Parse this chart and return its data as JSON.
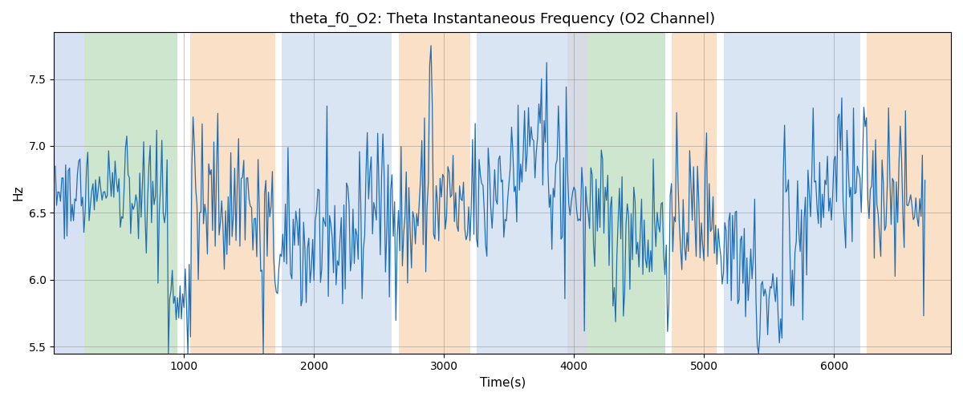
{
  "title": "theta_f0_O2: Theta Instantaneous Frequency (O2 Channel)",
  "xlabel": "Time(s)",
  "ylabel": "Hz",
  "ylim": [
    5.45,
    7.85
  ],
  "xlim": [
    0,
    6900
  ],
  "grid": true,
  "line_color": "#1f6eb5",
  "line_width": 0.9,
  "background_color": "#ffffff",
  "bands": [
    {
      "start": 0,
      "end": 230,
      "color": "#aec6e8",
      "alpha": 0.5
    },
    {
      "start": 230,
      "end": 950,
      "color": "#90c990",
      "alpha": 0.45
    },
    {
      "start": 950,
      "end": 1050,
      "color": "#ffffff",
      "alpha": 0.0
    },
    {
      "start": 1050,
      "end": 1700,
      "color": "#f5c89a",
      "alpha": 0.55
    },
    {
      "start": 1700,
      "end": 1750,
      "color": "#ffffff",
      "alpha": 0.0
    },
    {
      "start": 1750,
      "end": 2600,
      "color": "#aec6e8",
      "alpha": 0.45
    },
    {
      "start": 2600,
      "end": 2650,
      "color": "#ffffff",
      "alpha": 0.0
    },
    {
      "start": 2650,
      "end": 3200,
      "color": "#f5c89a",
      "alpha": 0.55
    },
    {
      "start": 3200,
      "end": 3250,
      "color": "#ffffff",
      "alpha": 0.0
    },
    {
      "start": 3250,
      "end": 3950,
      "color": "#aec6e8",
      "alpha": 0.45
    },
    {
      "start": 3950,
      "end": 4100,
      "color": "#b0b8c8",
      "alpha": 0.5
    },
    {
      "start": 4100,
      "end": 4700,
      "color": "#90c990",
      "alpha": 0.45
    },
    {
      "start": 4700,
      "end": 4750,
      "color": "#ffffff",
      "alpha": 0.0
    },
    {
      "start": 4750,
      "end": 5100,
      "color": "#f5c89a",
      "alpha": 0.55
    },
    {
      "start": 5100,
      "end": 5150,
      "color": "#ffffff",
      "alpha": 0.0
    },
    {
      "start": 5150,
      "end": 6200,
      "color": "#aec6e8",
      "alpha": 0.45
    },
    {
      "start": 6200,
      "end": 6250,
      "color": "#ffffff",
      "alpha": 0.0
    },
    {
      "start": 6250,
      "end": 6900,
      "color": "#f5c89a",
      "alpha": 0.55
    }
  ],
  "n_points": 670,
  "seed": 42,
  "base_freq": 6.5
}
